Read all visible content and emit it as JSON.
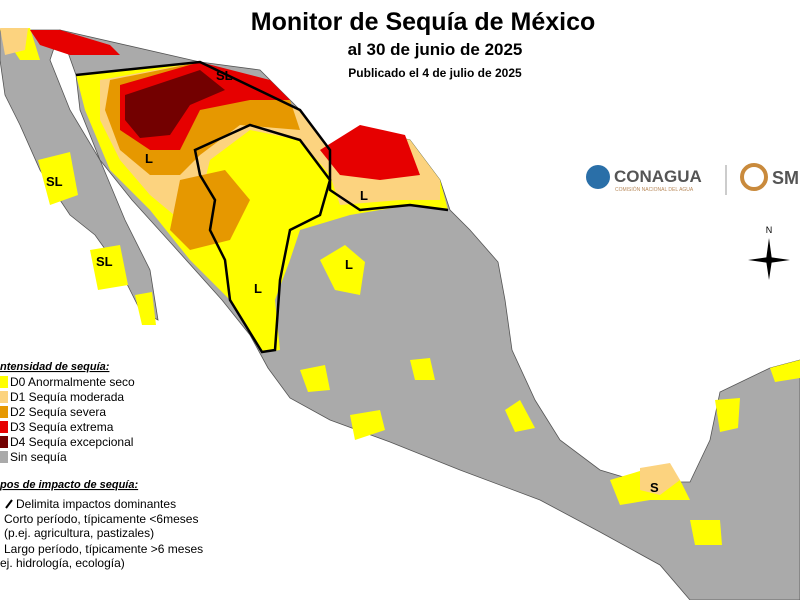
{
  "header": {
    "title": "Monitor de Sequía de México",
    "date": "al 30 de junio de 2025",
    "published": "Publicado el 4 de julio de 2025"
  },
  "logos": {
    "conagua": "CONAGUA",
    "conagua_caption": "COMISIÓN NACIONAL DEL AGUA",
    "smn": "SM"
  },
  "compass": "N",
  "map_labels": [
    "SL",
    "SL",
    "SL",
    "L",
    "L",
    "L",
    "L",
    "S"
  ],
  "legend": {
    "heading": "ntensidad de sequía:",
    "items": [
      {
        "label": "D0 Anormalmente seco",
        "color": "#ffff00"
      },
      {
        "label": "D1 Sequía moderada",
        "color": "#fcd37f"
      },
      {
        "label": "D2 Sequía severa",
        "color": "#e69800"
      },
      {
        "label": "D3 Sequía extrema",
        "color": "#e60000"
      },
      {
        "label": "D4 Sequía excepcional",
        "color": "#730000"
      },
      {
        "label": "Sin sequía",
        "color": "#aaaaaa"
      }
    ]
  },
  "impact_legend": {
    "heading": "pos de impacto de sequía:",
    "lines": [
      "Delimita impactos dominantes",
      "Corto período, típicamente <6meses",
      "(p.ej. agricultura, pastizales)",
      "Largo período, típicamente >6 meses",
      "ej. hidrología, ecología)"
    ]
  }
}
